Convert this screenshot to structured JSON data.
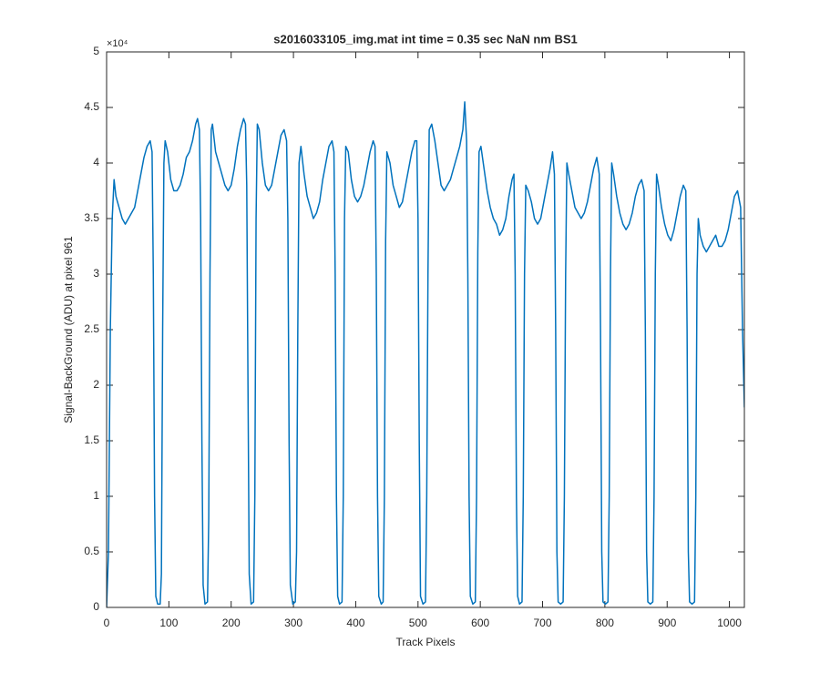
{
  "chart_data": {
    "type": "line",
    "title": "s2016033105_img.mat int time = 0.35 sec  NaN nm BS1",
    "xlabel": "Track Pixels",
    "ylabel": "Signal-BackGround (ADU) at pixel 961",
    "y_exponent": "×10⁴",
    "color": "#0072bd",
    "xlim": [
      0,
      1024
    ],
    "ylim": [
      0,
      5
    ],
    "xticks": [
      0,
      100,
      200,
      300,
      400,
      500,
      600,
      700,
      800,
      900,
      1000
    ],
    "yticks": [
      0,
      0.5,
      1,
      1.5,
      2,
      2.5,
      3,
      3.5,
      4,
      4.5,
      5
    ],
    "x": [
      0,
      3,
      6,
      9,
      12,
      15,
      20,
      25,
      30,
      35,
      40,
      45,
      50,
      55,
      60,
      65,
      70,
      73,
      75,
      77,
      79,
      82,
      86,
      88,
      90,
      92,
      94,
      98,
      103,
      108,
      113,
      118,
      123,
      128,
      133,
      138,
      143,
      146,
      149,
      151,
      153,
      155,
      158,
      162,
      164,
      166,
      168,
      170,
      175,
      180,
      185,
      190,
      195,
      200,
      205,
      210,
      215,
      220,
      223,
      225,
      227,
      229,
      232,
      236,
      238,
      240,
      242,
      245,
      250,
      255,
      260,
      265,
      270,
      275,
      280,
      285,
      289,
      291,
      293,
      295,
      299,
      303,
      305,
      307,
      309,
      312,
      317,
      322,
      327,
      332,
      337,
      342,
      347,
      352,
      357,
      362,
      365,
      367,
      369,
      371,
      374,
      378,
      380,
      382,
      384,
      388,
      393,
      398,
      403,
      408,
      413,
      418,
      423,
      428,
      431,
      433,
      435,
      437,
      441,
      444,
      446,
      448,
      450,
      455,
      460,
      465,
      470,
      475,
      480,
      485,
      490,
      495,
      498,
      500,
      502,
      504,
      508,
      512,
      514,
      516,
      518,
      522,
      527,
      532,
      537,
      542,
      547,
      552,
      557,
      562,
      567,
      572,
      575,
      578,
      580,
      582,
      584,
      588,
      592,
      594,
      596,
      598,
      601,
      606,
      611,
      616,
      621,
      626,
      631,
      636,
      641,
      646,
      651,
      654,
      656,
      658,
      660,
      663,
      667,
      669,
      671,
      673,
      677,
      682,
      687,
      692,
      697,
      702,
      707,
      712,
      716,
      719,
      721,
      723,
      725,
      729,
      733,
      735,
      737,
      739,
      742,
      747,
      752,
      757,
      762,
      767,
      772,
      777,
      782,
      787,
      791,
      793,
      795,
      797,
      801,
      805,
      807,
      809,
      811,
      814,
      819,
      824,
      829,
      834,
      839,
      844,
      849,
      854,
      859,
      863,
      865,
      867,
      869,
      873,
      877,
      879,
      881,
      883,
      886,
      891,
      896,
      901,
      906,
      911,
      916,
      921,
      926,
      930,
      932,
      934,
      936,
      940,
      944,
      946,
      948,
      950,
      953,
      958,
      963,
      968,
      973,
      978,
      983,
      988,
      993,
      998,
      1003,
      1008,
      1013,
      1018,
      1021,
      1024
    ],
    "values": [
      0,
      0.5,
      2.5,
      3.5,
      3.85,
      3.7,
      3.6,
      3.5,
      3.45,
      3.5,
      3.55,
      3.6,
      3.75,
      3.9,
      4.05,
      4.15,
      4.2,
      4.1,
      3.0,
      1.0,
      0.1,
      0.03,
      0.03,
      0.3,
      2.5,
      4.0,
      4.2,
      4.1,
      3.85,
      3.75,
      3.75,
      3.8,
      3.9,
      4.05,
      4.1,
      4.2,
      4.35,
      4.4,
      4.3,
      3.5,
      1.5,
      0.2,
      0.03,
      0.05,
      0.8,
      3.0,
      4.3,
      4.35,
      4.1,
      4.0,
      3.9,
      3.8,
      3.75,
      3.8,
      3.95,
      4.15,
      4.3,
      4.4,
      4.35,
      3.8,
      2.0,
      0.3,
      0.03,
      0.05,
      1.0,
      3.5,
      4.35,
      4.3,
      4.0,
      3.8,
      3.75,
      3.8,
      3.95,
      4.1,
      4.25,
      4.3,
      4.2,
      3.5,
      1.5,
      0.2,
      0.03,
      0.05,
      0.5,
      2.5,
      4.0,
      4.15,
      3.9,
      3.7,
      3.6,
      3.5,
      3.55,
      3.65,
      3.85,
      4.0,
      4.15,
      4.2,
      4.1,
      3.0,
      1.0,
      0.1,
      0.03,
      0.05,
      1.0,
      3.5,
      4.15,
      4.1,
      3.85,
      3.7,
      3.65,
      3.7,
      3.8,
      3.95,
      4.1,
      4.2,
      4.15,
      3.0,
      1.0,
      0.1,
      0.03,
      0.05,
      1.0,
      3.3,
      4.1,
      4.0,
      3.8,
      3.7,
      3.6,
      3.65,
      3.8,
      3.95,
      4.1,
      4.2,
      4.2,
      3.5,
      1.5,
      0.1,
      0.03,
      0.05,
      1.0,
      3.0,
      4.3,
      4.35,
      4.2,
      4.0,
      3.8,
      3.75,
      3.8,
      3.85,
      3.95,
      4.05,
      4.15,
      4.3,
      4.55,
      4.2,
      3.0,
      1.0,
      0.1,
      0.03,
      0.05,
      1.0,
      3.2,
      4.1,
      4.15,
      3.95,
      3.75,
      3.6,
      3.5,
      3.45,
      3.35,
      3.4,
      3.5,
      3.7,
      3.85,
      3.9,
      3.0,
      1.0,
      0.1,
      0.03,
      0.05,
      1.0,
      3.0,
      3.8,
      3.75,
      3.65,
      3.5,
      3.45,
      3.5,
      3.65,
      3.8,
      3.95,
      4.1,
      3.9,
      2.5,
      0.5,
      0.05,
      0.03,
      0.05,
      1.0,
      3.0,
      4.0,
      3.9,
      3.75,
      3.6,
      3.55,
      3.5,
      3.55,
      3.65,
      3.8,
      3.95,
      4.05,
      3.9,
      2.5,
      0.5,
      0.05,
      0.03,
      0.05,
      1.0,
      3.0,
      4.0,
      3.9,
      3.7,
      3.55,
      3.45,
      3.4,
      3.45,
      3.55,
      3.7,
      3.8,
      3.85,
      3.75,
      2.5,
      0.5,
      0.05,
      0.03,
      0.05,
      1.0,
      3.0,
      3.9,
      3.8,
      3.6,
      3.45,
      3.35,
      3.3,
      3.4,
      3.55,
      3.7,
      3.8,
      3.75,
      2.5,
      0.5,
      0.05,
      0.03,
      0.05,
      1.0,
      3.0,
      3.5,
      3.35,
      3.25,
      3.2,
      3.25,
      3.3,
      3.35,
      3.25,
      3.25,
      3.3,
      3.4,
      3.55,
      3.7,
      3.75,
      3.6,
      2.5,
      1.8
    ]
  }
}
